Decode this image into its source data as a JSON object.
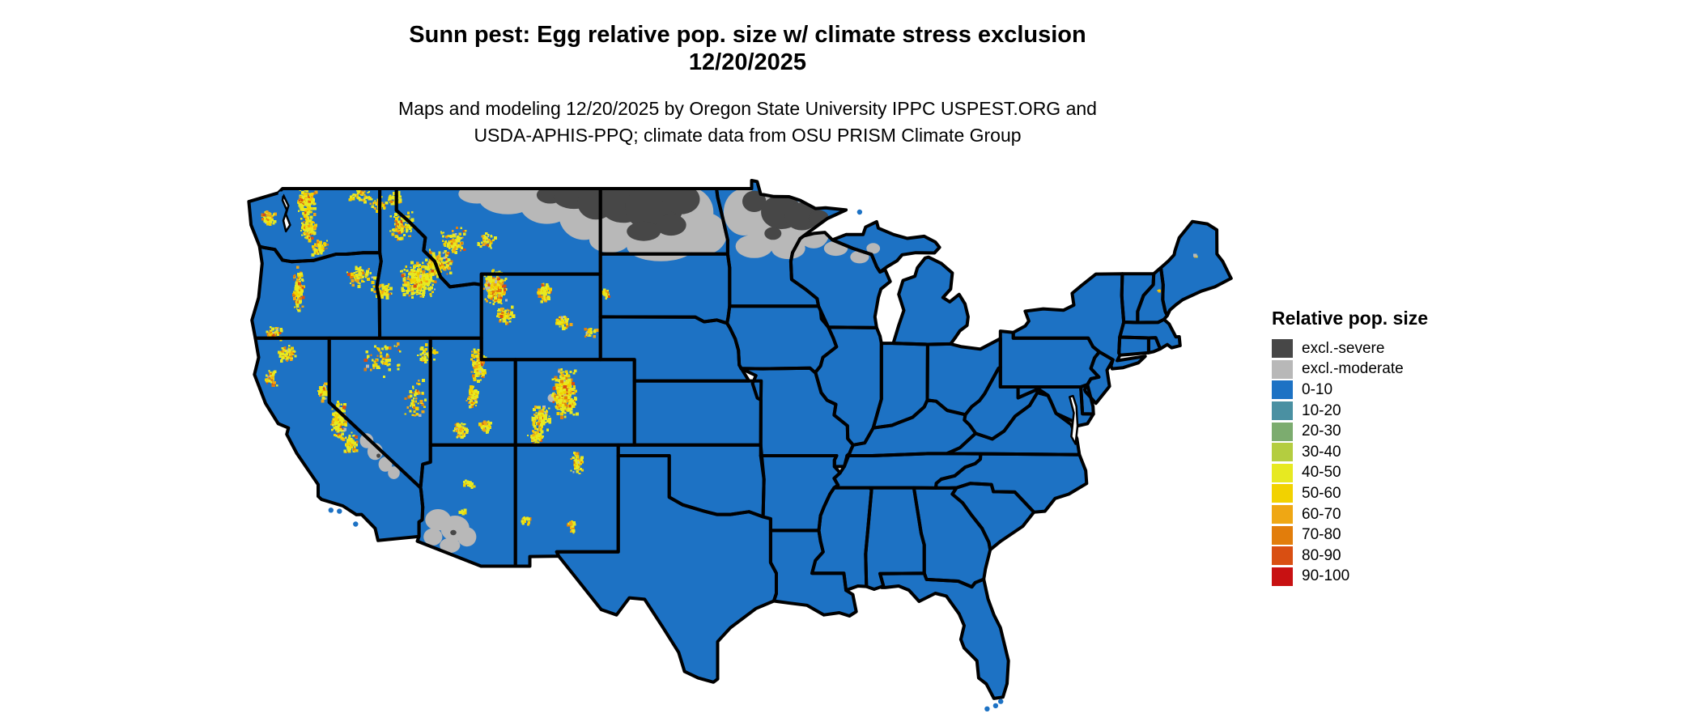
{
  "title": {
    "line1": "Sunn pest: Egg relative pop. size w/ climate stress exclusion",
    "line2": "12/20/2025"
  },
  "subtitle": {
    "line1": "Maps and modeling 12/20/2025 by Oregon State University IPPC USPEST.ORG and",
    "line2": "USDA-APHIS-PPQ; climate data from OSU PRISM Climate Group"
  },
  "legend": {
    "title": "Relative pop. size",
    "items": [
      {
        "label": "excl.-severe",
        "color": "#474747"
      },
      {
        "label": "excl.-moderate",
        "color": "#b8b8b8"
      },
      {
        "label": "0-10",
        "color": "#1d72c4"
      },
      {
        "label": "10-20",
        "color": "#4a90a2"
      },
      {
        "label": "20-30",
        "color": "#7cac6f"
      },
      {
        "label": "30-40",
        "color": "#b4cd40"
      },
      {
        "label": "40-50",
        "color": "#e7e921"
      },
      {
        "label": "50-60",
        "color": "#f2d200"
      },
      {
        "label": "60-70",
        "color": "#efa714"
      },
      {
        "label": "70-80",
        "color": "#e27d0b"
      },
      {
        "label": "80-90",
        "color": "#d94f12"
      },
      {
        "label": "90-100",
        "color": "#c81112"
      }
    ]
  },
  "map": {
    "region": "Contiguous United States (lower 48 states)",
    "border_color": "#000000",
    "background_color": "#ffffff",
    "base_class": "0-10",
    "notes": [
      "Nearly all of the contiguous US is mapped in the 0-10 class (blue)",
      "Climate stress exclusion zones (excl.-severe dark gray with excl.-moderate light gray fringe) cover northern Montana, most of North Dakota, northern Minnesota and small parts of northern Wisconsin",
      "Smaller excl.-moderate patches appear in southwest Arizona, the California-Nevada desert border and northwest Wyoming",
      "Scattered higher values (30-90, yellow to orange-red speckles) follow high-elevation terrain: Cascades, Olympics, Sierra Nevada, Idaho and Montana Rockies, Yellowstone, Wasatch, Colorado Rockies and other mountain ranges",
      "Great Lakes and ocean are unfilled white; state borders drawn in thick black"
    ]
  }
}
